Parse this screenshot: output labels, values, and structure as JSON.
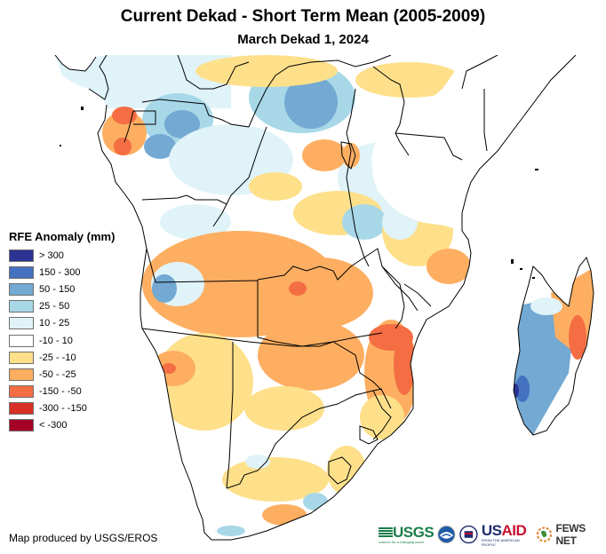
{
  "header": {
    "title": "Current Dekad - Short Term Mean (2005-2009)",
    "subtitle": "March Dekad 1, 2024"
  },
  "legend": {
    "title": "RFE Anomaly (mm)",
    "items": [
      {
        "label": "> 300",
        "color": "#2b3393"
      },
      {
        "label": "150 - 300",
        "color": "#4472c0"
      },
      {
        "label": "50 - 150",
        "color": "#73a9d2"
      },
      {
        "label": "25 - 50",
        "color": "#a8d8e8"
      },
      {
        "label": "10 - 25",
        "color": "#e0f3f8"
      },
      {
        "label": "-10 - 10",
        "color": "#ffffff"
      },
      {
        "label": "-25 - -10",
        "color": "#fee08b"
      },
      {
        "label": "-50 - -25",
        "color": "#fdae61"
      },
      {
        "label": "-150 - -50",
        "color": "#f46d43"
      },
      {
        "label": "-300 - -150",
        "color": "#d73027"
      },
      {
        "label": "< -300",
        "color": "#a50026"
      }
    ]
  },
  "footer": {
    "credit": "Map produced by USGS/EROS",
    "logos": {
      "usgs": "USGS",
      "usgs_tagline": "science for a changing world",
      "usaid_us": "US",
      "usaid_aid": "AID",
      "usaid_tagline": "FROM THE AMERICAN PEOPLE",
      "fews": "FEWS NET"
    }
  },
  "map": {
    "region": "Southern and Eastern Africa",
    "colors": {
      "border": "#000000",
      "ocean": "#ffffff"
    }
  }
}
